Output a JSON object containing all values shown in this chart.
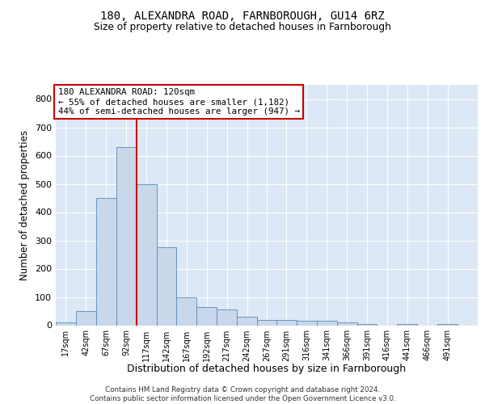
{
  "title1": "180, ALEXANDRA ROAD, FARNBOROUGH, GU14 6RZ",
  "title2": "Size of property relative to detached houses in Farnborough",
  "xlabel": "Distribution of detached houses by size in Farnborough",
  "ylabel": "Number of detached properties",
  "bar_color": "#c8d8ea",
  "bar_edge_color": "#5a88b5",
  "background_color": "#dce8f5",
  "annotation_text": "180 ALEXANDRA ROAD: 120sqm\n← 55% of detached houses are smaller (1,182)\n44% of semi-detached houses are larger (947) →",
  "vline_x": 117,
  "vline_color": "#cc0000",
  "footer_text": "Contains HM Land Registry data © Crown copyright and database right 2024.\nContains public sector information licensed under the Open Government Licence v3.0.",
  "bin_starts": [
    17,
    42,
    67,
    92,
    117,
    142,
    167,
    192,
    217,
    242,
    267,
    291,
    316,
    341,
    366,
    391,
    416,
    441,
    466,
    491
  ],
  "bin_width": 25,
  "counts": [
    10,
    50,
    450,
    630,
    500,
    275,
    100,
    65,
    55,
    30,
    20,
    20,
    15,
    15,
    10,
    5,
    0,
    5,
    0,
    5
  ],
  "ylim": [
    0,
    850
  ],
  "yticks": [
    0,
    100,
    200,
    300,
    400,
    500,
    600,
    700,
    800
  ],
  "xmin": 17,
  "xmax": 541
}
